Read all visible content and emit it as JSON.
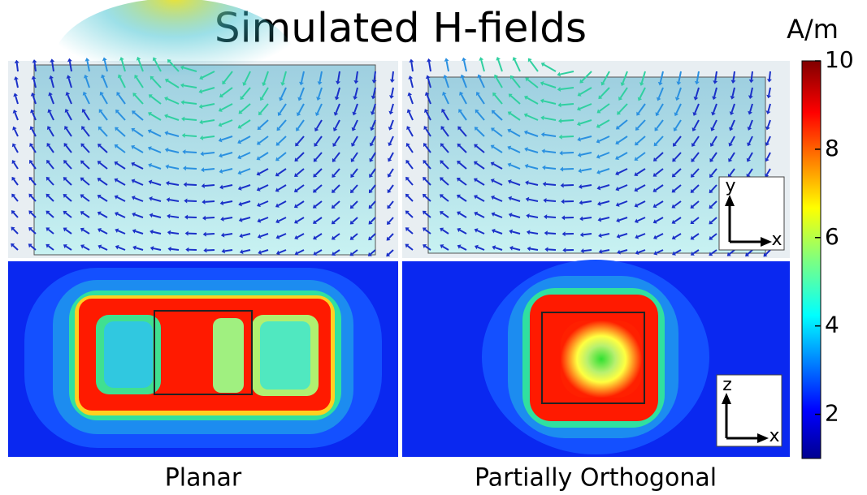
{
  "title": "Simulated H-fields",
  "unit": "A/m",
  "colorbar": {
    "lim": [
      1,
      10
    ],
    "ticks": [
      2,
      4,
      6,
      8,
      10
    ]
  },
  "panels": [
    {
      "label": "Planar"
    },
    {
      "label": "Partially Orthogonal"
    }
  ],
  "axes_icons": [
    {
      "vertical": "y",
      "horizontal": "x"
    },
    {
      "vertical": "z",
      "horizontal": "x"
    }
  ]
}
